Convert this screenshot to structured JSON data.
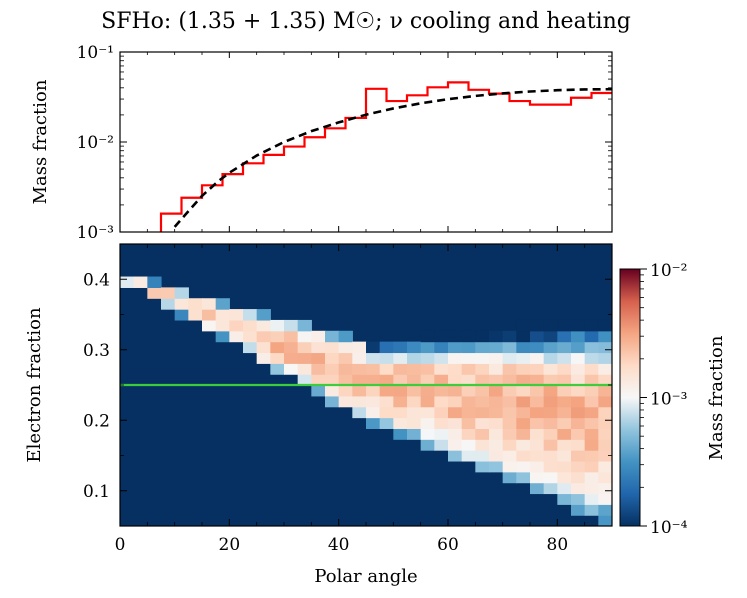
{
  "figure": {
    "title": "SFHo: (1.35 + 1.35) M☉; ν cooling and heating"
  },
  "chart_data": [
    {
      "type": "line",
      "panel": "top",
      "xlabel": "",
      "ylabel": "Mass fraction",
      "yscale": "log",
      "ylim": [
        0.001,
        0.1
      ],
      "xlim": [
        0,
        90
      ],
      "ytick_labels": [
        "10⁻³",
        "10⁻²",
        "10⁻¹"
      ],
      "series": [
        {
          "name": "histogram",
          "style": "step",
          "color": "#ff0000",
          "bin_edges": [
            7.5,
            11.25,
            15,
            18.75,
            22.5,
            26.25,
            30,
            33.75,
            37.5,
            41.25,
            45,
            48.75,
            52.5,
            56.25,
            60,
            63.75,
            67.5,
            71.25,
            75,
            78.75,
            82.5,
            86.25,
            90
          ],
          "values": [
            0.0016,
            0.0024,
            0.0033,
            0.0044,
            0.0058,
            0.0072,
            0.0089,
            0.0113,
            0.0142,
            0.0185,
            0.039,
            0.0285,
            0.033,
            0.0405,
            0.046,
            0.038,
            0.0345,
            0.0285,
            0.026,
            0.026,
            0.031,
            0.035
          ]
        },
        {
          "name": "fit",
          "style": "dashed",
          "color": "#000000",
          "x": [
            10,
            12,
            15,
            18,
            20,
            25,
            30,
            35,
            40,
            45,
            50,
            55,
            60,
            65,
            70,
            75,
            80,
            85,
            90
          ],
          "y": [
            0.00114,
            0.00157,
            0.00252,
            0.00368,
            0.00455,
            0.00707,
            0.01,
            0.0132,
            0.0165,
            0.0201,
            0.0236,
            0.0269,
            0.0299,
            0.0325,
            0.0347,
            0.0364,
            0.0376,
            0.0384,
            0.0386
          ]
        }
      ]
    },
    {
      "type": "heatmap",
      "panel": "bottom",
      "xlabel": "Polar angle",
      "ylabel": "Electron fraction",
      "xlim": [
        0,
        90
      ],
      "ylim": [
        0.05,
        0.45
      ],
      "xticks": [
        0,
        20,
        40,
        60,
        80
      ],
      "yticks": [
        0.1,
        0.2,
        0.3,
        0.4
      ],
      "colorbar_label": "Mass fraction",
      "colorbar_range": [
        0.0001,
        0.01
      ],
      "colorbar_tick_labels": [
        "10⁻⁴",
        "10⁻³",
        "10⁻²"
      ],
      "reference_line": {
        "y": 0.25,
        "color": "#33cc33"
      },
      "description_of_values": "Mass fraction per (polar angle, electron fraction) bin, read approximately from colour."
    }
  ],
  "heatmap_grid": {
    "nx": 36,
    "ny": 26,
    "x_edges_deg": [
      0,
      90
    ],
    "ye_edges": [
      0.05,
      0.45
    ]
  }
}
